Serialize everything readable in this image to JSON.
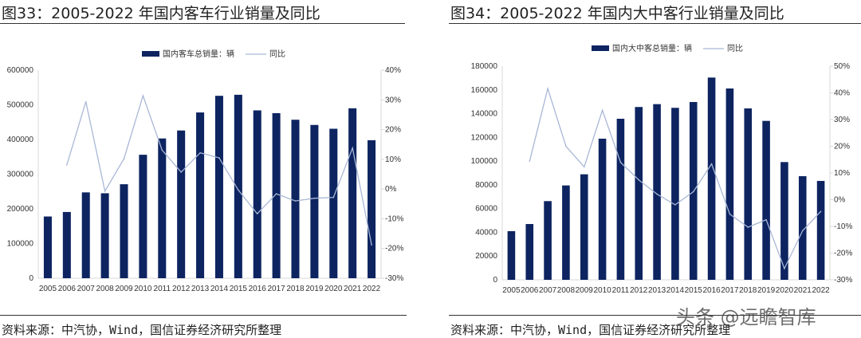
{
  "colors": {
    "bar": "#0d2461",
    "line": "#a9b7d6",
    "axis": "#d9d9d9"
  },
  "left_panel": {
    "title": "图33：2005-2022 年国内客车行业销量及同比",
    "source": "资料来源：中汽协，Wind，国信证券经济研究所整理"
  },
  "right_panel": {
    "title": "图34：2005-2022 年国内大中客行业销量及同比",
    "source": "资料来源：中汽协，Wind，国信证券经济研究所整理"
  },
  "watermark": "头条 @远瞻智库",
  "chart_data": [
    {
      "type": "bar+line",
      "categories": [
        "2005",
        "2006",
        "2007",
        "2008",
        "2009",
        "2010",
        "2011",
        "2012",
        "2013",
        "2014",
        "2015",
        "2016",
        "2017",
        "2018",
        "2019",
        "2020",
        "2021",
        "2022"
      ],
      "series": [
        {
          "name": "国内客车总销量：辆",
          "type": "bar",
          "axis": "left",
          "values": [
            178000,
            191000,
            247500,
            245000,
            271000,
            356000,
            403000,
            426000,
            478000,
            526000,
            529000,
            484000,
            476000,
            457000,
            442000,
            431000,
            490000,
            398000
          ]
        },
        {
          "name": "同比",
          "type": "line",
          "axis": "right",
          "values": [
            null,
            8.1,
            29.4,
            -0.7,
            10.2,
            31.4,
            13.1,
            5.7,
            12.2,
            10.5,
            -0.3,
            -8.3,
            -1.6,
            -4.0,
            -3.1,
            -2.8,
            13.8,
            -18.8
          ]
        }
      ],
      "ylim_left": [
        0,
        600000
      ],
      "yticks_left": [
        "0",
        "100000",
        "200000",
        "300000",
        "400000",
        "500000",
        "600000"
      ],
      "ylim_right": [
        -30,
        40
      ],
      "yticks_right": [
        "-30%",
        "-20%",
        "-10%",
        "0%",
        "10%",
        "20%",
        "30%",
        "40%"
      ],
      "legend": "top",
      "grid": false
    },
    {
      "type": "bar+line",
      "categories": [
        "2005",
        "2006",
        "2007",
        "2008",
        "2009",
        "2010",
        "2011",
        "2012",
        "2013",
        "2014",
        "2015",
        "2016",
        "2017",
        "2018",
        "2019",
        "2020",
        "2021",
        "2022"
      ],
      "series": [
        {
          "name": "国内大中客总销量：辆",
          "type": "bar",
          "axis": "left",
          "values": [
            41000,
            47000,
            66300,
            79500,
            88900,
            118900,
            135700,
            145600,
            148000,
            144900,
            149800,
            170400,
            161200,
            144400,
            133900,
            99200,
            87300,
            83300
          ]
        },
        {
          "name": "同比",
          "type": "line",
          "axis": "right",
          "values": [
            null,
            14.4,
            41.6,
            20.0,
            12.3,
            33.5,
            14.0,
            7.4,
            2.1,
            -1.9,
            3.0,
            13.4,
            -5.4,
            -10.3,
            -7.5,
            -25.8,
            -11.6,
            -4.4
          ]
        }
      ],
      "ylim_left": [
        0,
        180000
      ],
      "yticks_left": [
        "0",
        "20000",
        "40000",
        "60000",
        "80000",
        "100000",
        "120000",
        "140000",
        "160000",
        "180000"
      ],
      "ylim_right": [
        -30,
        50
      ],
      "yticks_right": [
        "-30%",
        "-20%",
        "-10%",
        "0%",
        "10%",
        "20%",
        "30%",
        "40%",
        "50%"
      ],
      "legend": "top",
      "grid": false
    }
  ]
}
